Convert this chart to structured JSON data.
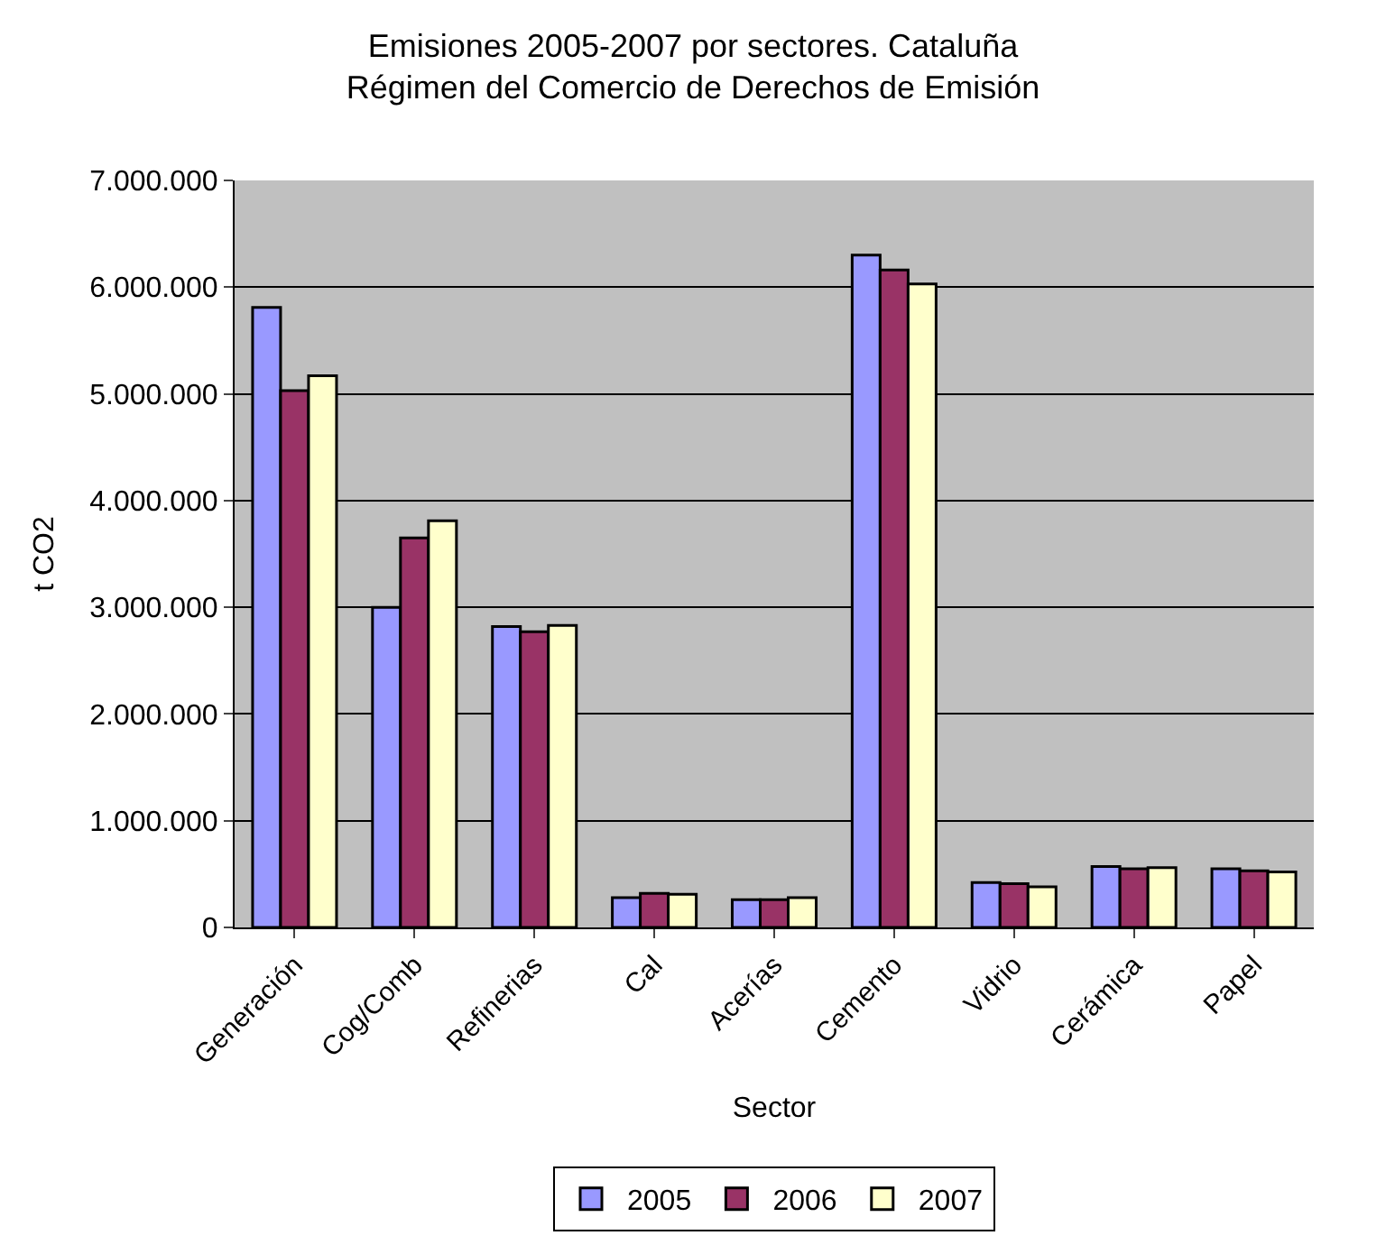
{
  "chart_data": {
    "type": "bar",
    "title": "Emisiones 2005-2007 por sectores. Cataluña\nRégimen del Comercio de Derechos de Emisión",
    "xlabel": "Sector",
    "ylabel": "t CO2",
    "categories": [
      "Generación",
      "Cog/Comb",
      "Refinerias",
      "Cal",
      "Acerías",
      "Cemento",
      "Vidrio",
      "Cerámica",
      "Papel"
    ],
    "series": [
      {
        "name": "2005",
        "color": "#9999ff",
        "values": [
          5810000,
          3000000,
          2820000,
          280000,
          260000,
          6300000,
          420000,
          570000,
          550000
        ]
      },
      {
        "name": "2006",
        "color": "#993366",
        "values": [
          5030000,
          3650000,
          2770000,
          320000,
          260000,
          6160000,
          410000,
          550000,
          530000
        ]
      },
      {
        "name": "2007",
        "color": "#ffffcc",
        "values": [
          5170000,
          3810000,
          2830000,
          310000,
          280000,
          6030000,
          380000,
          560000,
          520000
        ]
      }
    ],
    "ylim": [
      0,
      7000000
    ],
    "yticks": [
      {
        "value": 0,
        "label": "0"
      },
      {
        "value": 1000000,
        "label": "1.000.000"
      },
      {
        "value": 2000000,
        "label": "2.000.000"
      },
      {
        "value": 3000000,
        "label": "3.000.000"
      },
      {
        "value": 4000000,
        "label": "4.000.000"
      },
      {
        "value": 5000000,
        "label": "5.000.000"
      },
      {
        "value": 6000000,
        "label": "6.000.000"
      },
      {
        "value": 7000000,
        "label": "7.000.000"
      }
    ],
    "grid": "y",
    "legend": "bottom"
  }
}
